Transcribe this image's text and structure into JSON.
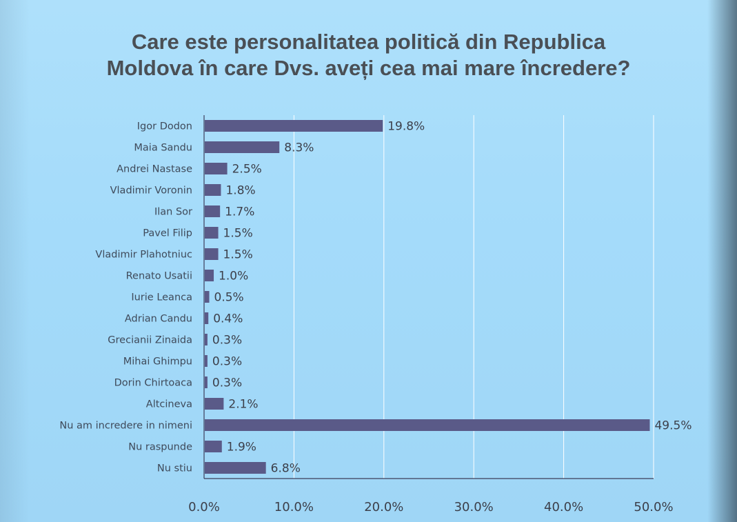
{
  "title_line1": "Care este personalitatea politică din Republica",
  "title_line2": "Moldova în care Dvs. aveți cea mai mare încredere?",
  "colors": {
    "bar": "#5a5a88",
    "grid": "#ffffff",
    "axis": "#3c3c5a",
    "category_text": "#3f4a5a",
    "value_text": "#3c3f4a",
    "tick_text": "#3c3f4a"
  },
  "chart_data": {
    "type": "bar",
    "orientation": "horizontal",
    "title": "Care este personalitatea politică din Republica Moldova în care Dvs. aveți cea mai mare încredere?",
    "categories": [
      "Igor Dodon",
      "Maia Sandu",
      "Andrei Nastase",
      "Vladimir Voronin",
      "Ilan Sor",
      "Pavel Filip",
      "Vladimir Plahotniuc",
      "Renato Usatii",
      "Iurie Leanca",
      "Adrian Candu",
      "Grecianii Zinaida",
      "Mihai Ghimpu",
      "Dorin Chirtoaca",
      "Altcineva",
      "Nu am incredere in nimeni",
      "Nu raspunde",
      "Nu stiu"
    ],
    "values": [
      19.8,
      8.3,
      2.5,
      1.8,
      1.7,
      1.5,
      1.5,
      1.0,
      0.5,
      0.4,
      0.3,
      0.3,
      0.3,
      2.1,
      49.5,
      1.9,
      6.8
    ],
    "value_labels": [
      "19.8%",
      "8.3%",
      "2.5%",
      "1.8%",
      "1.7%",
      "1.5%",
      "1.5%",
      "1.0%",
      "0.5%",
      "0.4%",
      "0.3%",
      "0.3%",
      "0.3%",
      "2.1%",
      "49.5%",
      "1.9%",
      "6.8%"
    ],
    "xlim": [
      0,
      50
    ],
    "xticks": [
      0,
      10,
      20,
      30,
      40,
      50
    ],
    "xtick_labels": [
      "0.0%",
      "10.0%",
      "20.0%",
      "30.0%",
      "40.0%",
      "50.0%"
    ],
    "grid": true,
    "xlabel": "",
    "ylabel": ""
  }
}
